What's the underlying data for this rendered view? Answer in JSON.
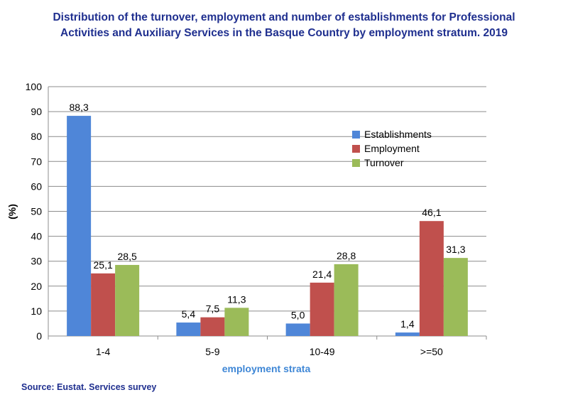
{
  "title": "Distribution of the turnover, employment and number of establishments for Professional Activities and Auxiliary Services in the Basque Country by employment stratum. 2019",
  "title_lines": [
    "Distribution of the turnover, employment and number of establishments for Professional",
    "Activities and Auxiliary Services in the Basque Country by employment stratum. 2019"
  ],
  "source": "Source: Eustat. Services survey",
  "chart_data": {
    "type": "bar",
    "title": "Distribution of the turnover, employment and number of establishments for Professional Activities and Auxiliary Services in the Basque Country by employment stratum. 2019",
    "xlabel": "employment strata",
    "ylabel": "(%)",
    "ylim": [
      0,
      100
    ],
    "yticks": [
      0,
      10,
      20,
      30,
      40,
      50,
      60,
      70,
      80,
      90,
      100
    ],
    "grid": true,
    "legend_position": "right",
    "categories": [
      "1-4",
      "5-9",
      "10-49",
      ">=50"
    ],
    "series": [
      {
        "name": "Establishments",
        "color": "#4f86d8",
        "values": [
          88.3,
          5.4,
          5.0,
          1.4
        ],
        "labels": [
          "88,3",
          "5,4",
          "5,0",
          "1,4"
        ]
      },
      {
        "name": "Employment",
        "color": "#c0504d",
        "values": [
          25.1,
          7.5,
          21.4,
          46.1
        ],
        "labels": [
          "25,1",
          "7,5",
          "21,4",
          "46,1"
        ]
      },
      {
        "name": "Turnover",
        "color": "#9bbb59",
        "values": [
          28.5,
          11.3,
          28.8,
          31.3
        ],
        "labels": [
          "28,5",
          "11,3",
          "28,8",
          "31,3"
        ]
      }
    ]
  }
}
